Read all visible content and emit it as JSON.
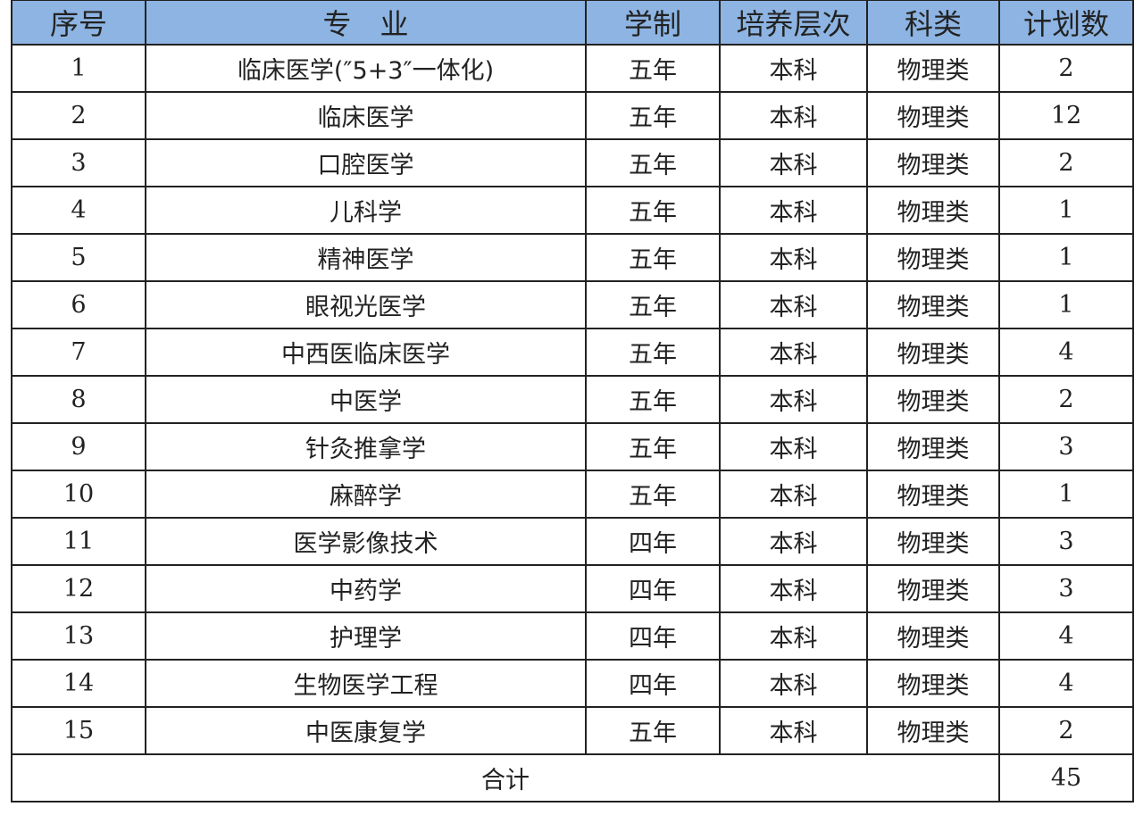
{
  "table": {
    "headers": [
      "序号",
      "专　业",
      "学制",
      "培养层次",
      "科类",
      "计划数"
    ],
    "rows": [
      [
        "1",
        "临床医学(″5+3″一体化)",
        "五年",
        "本科",
        "物理类",
        "2"
      ],
      [
        "2",
        "临床医学",
        "五年",
        "本科",
        "物理类",
        "12"
      ],
      [
        "3",
        "口腔医学",
        "五年",
        "本科",
        "物理类",
        "2"
      ],
      [
        "4",
        "儿科学",
        "五年",
        "本科",
        "物理类",
        "1"
      ],
      [
        "5",
        "精神医学",
        "五年",
        "本科",
        "物理类",
        "1"
      ],
      [
        "6",
        "眼视光医学",
        "五年",
        "本科",
        "物理类",
        "1"
      ],
      [
        "7",
        "中西医临床医学",
        "五年",
        "本科",
        "物理类",
        "4"
      ],
      [
        "8",
        "中医学",
        "五年",
        "本科",
        "物理类",
        "2"
      ],
      [
        "9",
        "针灸推拿学",
        "五年",
        "本科",
        "物理类",
        "3"
      ],
      [
        "10",
        "麻醉学",
        "五年",
        "本科",
        "物理类",
        "1"
      ],
      [
        "11",
        "医学影像技术",
        "四年",
        "本科",
        "物理类",
        "3"
      ],
      [
        "12",
        "中药学",
        "四年",
        "本科",
        "物理类",
        "3"
      ],
      [
        "13",
        "护理学",
        "四年",
        "本科",
        "物理类",
        "4"
      ],
      [
        "14",
        "生物医学工程",
        "四年",
        "本科",
        "物理类",
        "4"
      ],
      [
        "15",
        "中医康复学",
        "五年",
        "本科",
        "物理类",
        "2"
      ]
    ],
    "total_label": "合计",
    "total_value": "45"
  },
  "colors": {
    "header_bg": "#8DB4E2",
    "border": "#222222"
  }
}
